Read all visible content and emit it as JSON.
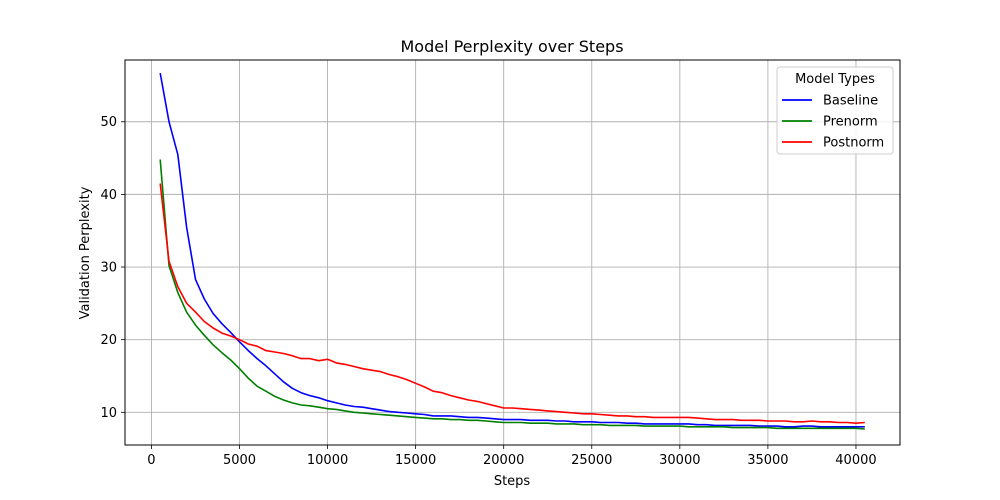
{
  "chart_data": {
    "type": "line",
    "title": "Model Perplexity over Steps",
    "xlabel": "Steps",
    "ylabel": "Validation Perplexity",
    "xlim": [
      -1500,
      42500
    ],
    "ylim": [
      5.5,
      58.5
    ],
    "xticks": [
      0,
      5000,
      10000,
      15000,
      20000,
      25000,
      30000,
      35000,
      40000
    ],
    "yticks": [
      10,
      20,
      30,
      40,
      50
    ],
    "grid": true,
    "legend": {
      "title": "Model Types",
      "placement": "top-right"
    },
    "x": [
      500,
      1000,
      1500,
      2000,
      2500,
      3000,
      3500,
      4000,
      4500,
      5000,
      5500,
      6000,
      6500,
      7000,
      7500,
      8000,
      8500,
      9000,
      9500,
      10000,
      10500,
      11000,
      11500,
      12000,
      12500,
      13000,
      13500,
      14000,
      14500,
      15000,
      15500,
      16000,
      16500,
      17000,
      17500,
      18000,
      18500,
      19000,
      19500,
      20000,
      20500,
      21000,
      21500,
      22000,
      22500,
      23000,
      23500,
      24000,
      24500,
      25000,
      25500,
      26000,
      26500,
      27000,
      27500,
      28000,
      28500,
      29000,
      29500,
      30000,
      30500,
      31000,
      31500,
      32000,
      32500,
      33000,
      33500,
      34000,
      34500,
      35000,
      35500,
      36000,
      36500,
      37000,
      37500,
      38000,
      38500,
      39000,
      39500,
      40000,
      40500
    ],
    "series": [
      {
        "name": "Baseline",
        "color": "#0000ff",
        "values": [
          56.7,
          50.0,
          45.5,
          35.5,
          28.3,
          25.6,
          23.6,
          22.2,
          21.0,
          19.7,
          18.5,
          17.4,
          16.4,
          15.3,
          14.2,
          13.3,
          12.7,
          12.3,
          12.0,
          11.6,
          11.3,
          11.0,
          10.8,
          10.7,
          10.5,
          10.3,
          10.1,
          10.0,
          9.9,
          9.8,
          9.7,
          9.5,
          9.5,
          9.5,
          9.4,
          9.3,
          9.3,
          9.2,
          9.1,
          9.0,
          9.0,
          9.0,
          8.9,
          8.9,
          8.9,
          8.8,
          8.8,
          8.7,
          8.7,
          8.7,
          8.6,
          8.6,
          8.6,
          8.5,
          8.5,
          8.4,
          8.4,
          8.4,
          8.4,
          8.4,
          8.4,
          8.3,
          8.3,
          8.2,
          8.2,
          8.2,
          8.2,
          8.2,
          8.1,
          8.1,
          8.1,
          8.0,
          8.0,
          8.1,
          8.1,
          8.0,
          8.0,
          8.0,
          8.0,
          8.0,
          8.0
        ]
      },
      {
        "name": "Prenorm",
        "color": "#008000",
        "values": [
          44.8,
          30.2,
          26.5,
          23.8,
          22.0,
          20.6,
          19.3,
          18.2,
          17.2,
          16.0,
          14.7,
          13.6,
          12.9,
          12.2,
          11.7,
          11.3,
          11.0,
          10.9,
          10.7,
          10.5,
          10.4,
          10.2,
          10.0,
          9.9,
          9.8,
          9.7,
          9.6,
          9.5,
          9.4,
          9.3,
          9.2,
          9.1,
          9.1,
          9.0,
          9.0,
          8.9,
          8.9,
          8.8,
          8.7,
          8.6,
          8.6,
          8.6,
          8.5,
          8.5,
          8.5,
          8.4,
          8.4,
          8.4,
          8.3,
          8.3,
          8.3,
          8.2,
          8.2,
          8.2,
          8.2,
          8.1,
          8.1,
          8.1,
          8.1,
          8.1,
          8.0,
          8.0,
          8.0,
          8.0,
          8.0,
          7.9,
          7.9,
          7.9,
          7.9,
          7.9,
          7.8,
          7.8,
          7.8,
          7.8,
          7.8,
          7.8,
          7.8,
          7.8,
          7.8,
          7.8,
          7.7
        ]
      },
      {
        "name": "Postnorm",
        "color": "#ff0000",
        "values": [
          41.5,
          30.8,
          27.3,
          25.0,
          23.8,
          22.5,
          21.6,
          20.9,
          20.5,
          20.0,
          19.4,
          19.1,
          18.5,
          18.3,
          18.1,
          17.8,
          17.4,
          17.4,
          17.1,
          17.3,
          16.8,
          16.6,
          16.3,
          16.0,
          15.8,
          15.6,
          15.2,
          14.9,
          14.5,
          14.0,
          13.5,
          12.9,
          12.7,
          12.3,
          12.0,
          11.7,
          11.5,
          11.2,
          10.9,
          10.6,
          10.6,
          10.5,
          10.4,
          10.3,
          10.2,
          10.1,
          10.0,
          9.9,
          9.8,
          9.8,
          9.7,
          9.6,
          9.5,
          9.5,
          9.4,
          9.4,
          9.3,
          9.3,
          9.3,
          9.3,
          9.3,
          9.2,
          9.1,
          9.0,
          9.0,
          9.0,
          8.9,
          8.9,
          8.9,
          8.8,
          8.8,
          8.8,
          8.7,
          8.7,
          8.8,
          8.7,
          8.7,
          8.6,
          8.6,
          8.5,
          8.6
        ]
      }
    ]
  }
}
